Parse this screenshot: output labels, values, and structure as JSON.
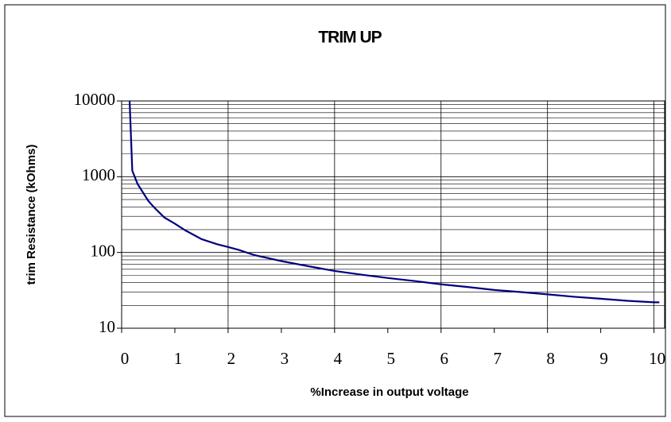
{
  "chart_data": {
    "type": "line",
    "title": "TRIM UP",
    "x_label": "%Increase in output voltage",
    "y_label": "trim Resistance (kOhms)",
    "x": [
      0.15,
      0.2,
      0.3,
      0.4,
      0.5,
      0.6,
      0.8,
      1,
      1.2,
      1.5,
      1.8,
      2,
      2.2,
      2.5,
      3,
      3.5,
      4,
      4.5,
      5,
      5.5,
      6,
      6.5,
      7,
      7.5,
      8,
      8.5,
      9,
      9.5,
      10,
      10.1
    ],
    "series": [
      {
        "name": "trim up",
        "color": "#000080",
        "values": [
          11000,
          1200,
          800,
          620,
          480,
          400,
          290,
          240,
          195,
          150,
          128,
          118,
          108,
          92,
          77,
          66,
          57,
          51,
          46,
          42,
          38,
          35,
          32,
          30,
          28,
          26,
          24.5,
          23,
          22,
          22
        ]
      }
    ],
    "xlim": [
      0,
      10.2
    ],
    "xticks": [
      0,
      1,
      2,
      3,
      4,
      5,
      6,
      7,
      8,
      9,
      10
    ],
    "ylim": [
      10,
      10000
    ],
    "yticks": [
      10,
      100,
      1000,
      10000
    ],
    "log_y": true,
    "grid": true,
    "x_grid_every": 2
  }
}
